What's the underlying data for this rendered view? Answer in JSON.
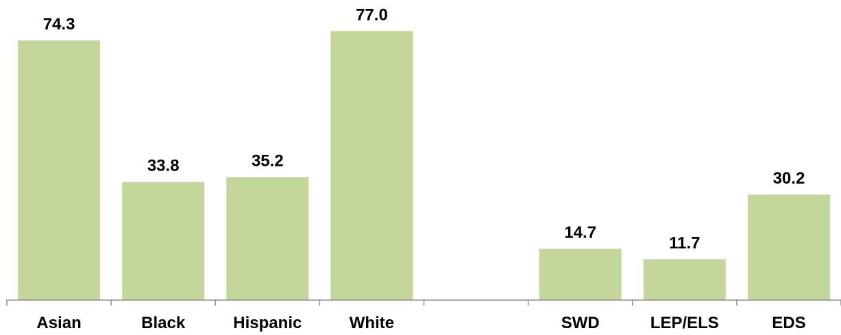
{
  "chart_data": {
    "type": "bar",
    "categories": [
      "Asian",
      "Black",
      "Hispanic",
      "White",
      "",
      "SWD",
      "LEP/ELS",
      "EDS"
    ],
    "values": [
      74.3,
      33.8,
      35.2,
      77.0,
      null,
      14.7,
      11.7,
      30.2
    ],
    "value_labels": [
      "74.3",
      "33.8",
      "35.2",
      "77.0",
      "",
      "14.7",
      "11.7",
      "30.2"
    ],
    "title": "",
    "xlabel": "",
    "ylabel": "",
    "ylim": [
      0,
      100
    ],
    "grid": false,
    "legend": "none",
    "bar_color": "#c4d79b",
    "axis_color": "#8c8c8c",
    "text_color": "#000000"
  }
}
